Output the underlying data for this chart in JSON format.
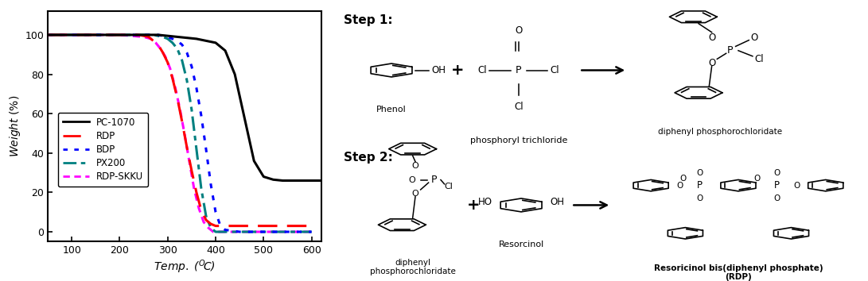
{
  "fig_width": 10.91,
  "fig_height": 3.54,
  "dpi": 100,
  "tga": {
    "xlim": [
      50,
      620
    ],
    "ylim": [
      -5,
      112
    ],
    "xticks": [
      100,
      200,
      300,
      400,
      500,
      600
    ],
    "yticks": [
      0,
      20,
      40,
      60,
      80,
      100
    ],
    "xlabel": "Temp. ( C)",
    "ylabel": "Weight (%)",
    "curves": {
      "PC-1070": {
        "color": "#000000",
        "linewidth": 2.2,
        "x": [
          50,
          100,
          150,
          200,
          250,
          280,
          300,
          320,
          340,
          360,
          380,
          400,
          420,
          440,
          460,
          480,
          500,
          520,
          540,
          560,
          580,
          600,
          620
        ],
        "y": [
          100,
          100,
          100,
          100,
          100,
          100,
          99.5,
          99,
          98.5,
          98,
          97,
          96,
          92,
          80,
          58,
          36,
          28,
          26.5,
          26,
          26,
          26,
          26,
          26
        ]
      },
      "RDP": {
        "color": "#ff0000",
        "linewidth": 2.2,
        "x": [
          50,
          100,
          150,
          200,
          240,
          260,
          270,
          280,
          290,
          300,
          310,
          320,
          330,
          340,
          350,
          360,
          370,
          380,
          390,
          400,
          410,
          450,
          600
        ],
        "y": [
          100,
          100,
          100,
          100,
          100,
          99,
          97,
          95,
          91,
          86,
          78,
          68,
          56,
          43,
          31,
          20,
          11,
          6,
          4,
          3,
          3,
          3,
          3
        ]
      },
      "BDP": {
        "color": "#0000ff",
        "linewidth": 2.2,
        "x": [
          50,
          100,
          150,
          200,
          250,
          280,
          300,
          310,
          320,
          330,
          340,
          350,
          360,
          370,
          380,
          390,
          400,
          410,
          420,
          450,
          600
        ],
        "y": [
          100,
          100,
          100,
          100,
          100,
          100,
          99,
          98,
          97,
          95,
          91,
          84,
          73,
          59,
          42,
          24,
          10,
          3,
          1,
          0,
          0
        ]
      },
      "PX200": {
        "color": "#008080",
        "linewidth": 2.2,
        "x": [
          50,
          100,
          150,
          200,
          250,
          270,
          280,
          290,
          300,
          310,
          320,
          330,
          340,
          350,
          360,
          370,
          380,
          390,
          400,
          410,
          600
        ],
        "y": [
          100,
          100,
          100,
          100,
          100,
          100,
          99.5,
          99,
          98,
          96,
          93,
          87,
          77,
          62,
          42,
          22,
          8,
          2,
          0,
          0,
          0
        ]
      },
      "RDP-SKKU": {
        "color": "#ff00ff",
        "linewidth": 2.2,
        "x": [
          50,
          100,
          150,
          200,
          250,
          265,
          275,
          285,
          295,
          305,
          315,
          325,
          335,
          345,
          355,
          365,
          375,
          385,
          395,
          405,
          600
        ],
        "y": [
          100,
          100,
          100,
          100,
          99,
          98,
          96,
          93,
          89,
          83,
          74,
          63,
          50,
          36,
          22,
          12,
          5,
          2,
          0,
          0,
          0
        ]
      }
    },
    "legend_order": [
      "PC-1070",
      "RDP",
      "BDP",
      "PX200",
      "RDP-SKKU"
    ]
  }
}
